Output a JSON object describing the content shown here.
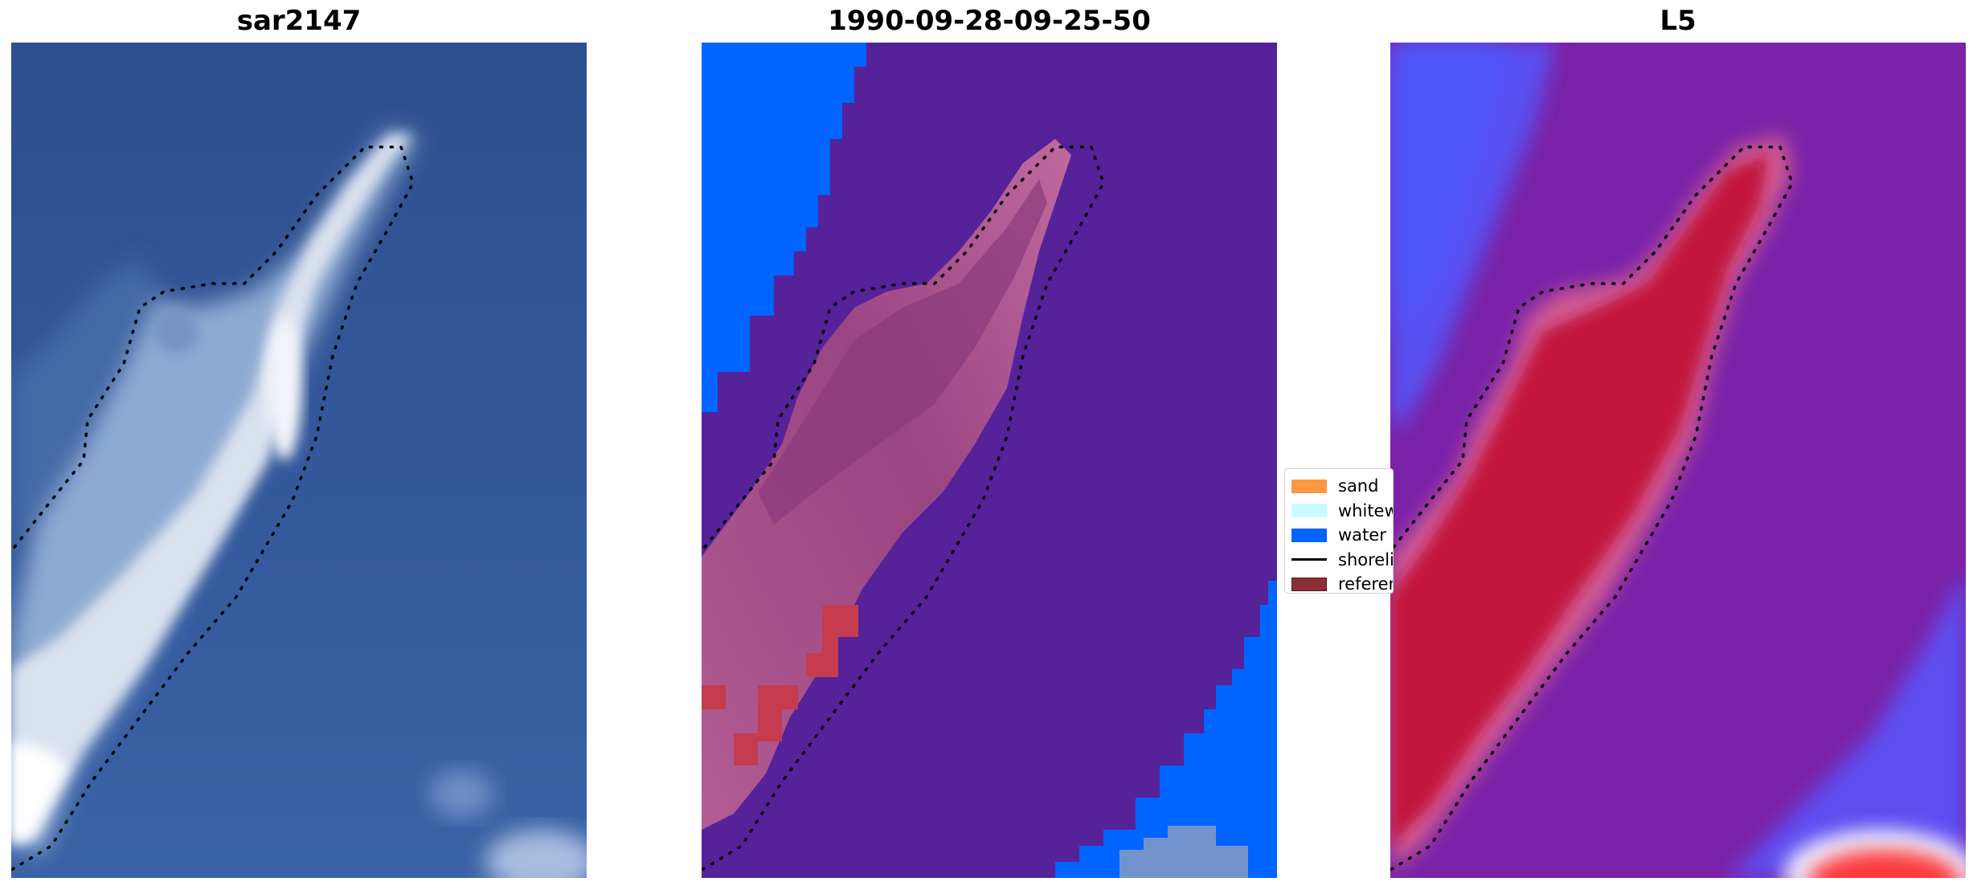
{
  "panels": [
    {
      "title": "sar2147",
      "kind": "rgb-satellite-image"
    },
    {
      "title": "1990-09-28-09-25-50",
      "kind": "classification-map"
    },
    {
      "title": "L5",
      "kind": "index-heatmap"
    }
  ],
  "legend": {
    "items": [
      {
        "label": "sand",
        "color": "#ff9640",
        "type": "patch"
      },
      {
        "label": "whitewater",
        "color": "#c8fcfc",
        "type": "patch"
      },
      {
        "label": "water",
        "color": "#0064ff",
        "type": "patch"
      },
      {
        "label": "shoreline",
        "color": "#000000",
        "type": "line"
      },
      {
        "label": "reference",
        "color": "#8b2e35",
        "type": "patch"
      }
    ]
  },
  "colors": {
    "sea_blue": "#3a5fa0",
    "class_bg_purple": "#55229a",
    "class_water_blue": "#0064ff",
    "class_sand_pink": "#b15a90",
    "class_reference_red": "#c43c4e",
    "index_purple": "#7a22a8",
    "index_red": "#c3123e",
    "index_blue": "#5050ff"
  }
}
